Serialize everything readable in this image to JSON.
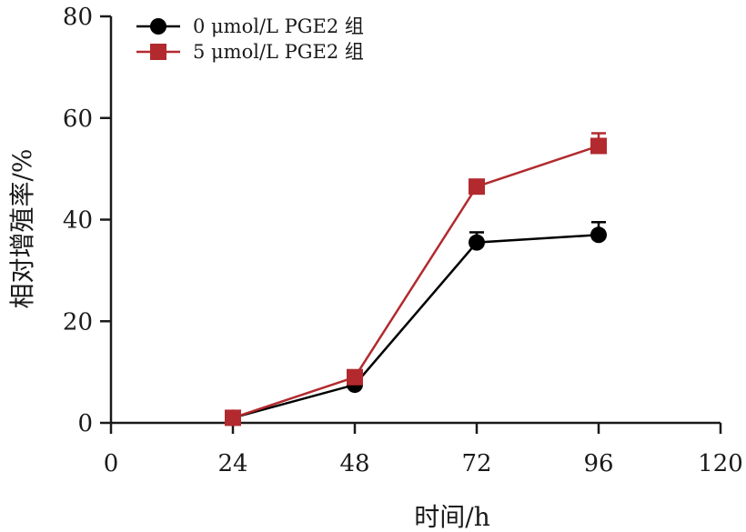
{
  "chart_data": {
    "type": "line",
    "xlabel": "时间/h",
    "ylabel": "相对增殖率/%",
    "xlim": [
      0,
      120
    ],
    "ylim": [
      0,
      80
    ],
    "xticks": [
      0,
      24,
      48,
      72,
      96,
      120
    ],
    "yticks": [
      0,
      20,
      40,
      60,
      80
    ],
    "xtick_labels": [
      "0",
      "24",
      "48",
      "72",
      "96",
      "120"
    ],
    "ytick_labels": [
      "0",
      "20",
      "40",
      "60",
      "80"
    ],
    "grid": false,
    "legend_position": "top-left",
    "series": [
      {
        "name": "0 μmol/L PGE2 组",
        "color": "#000000",
        "marker": "circle",
        "x": [
          24,
          48,
          72,
          96
        ],
        "y": [
          1,
          7.5,
          35.5,
          37
        ],
        "error": [
          0,
          0,
          2,
          2.5
        ]
      },
      {
        "name": "5 μmol/L PGE2 组",
        "color": "#b22a2e",
        "marker": "square",
        "x": [
          24,
          48,
          72,
          96
        ],
        "y": [
          1,
          9,
          46.5,
          54.5
        ],
        "error": [
          0,
          0,
          0,
          2.5
        ]
      }
    ]
  }
}
